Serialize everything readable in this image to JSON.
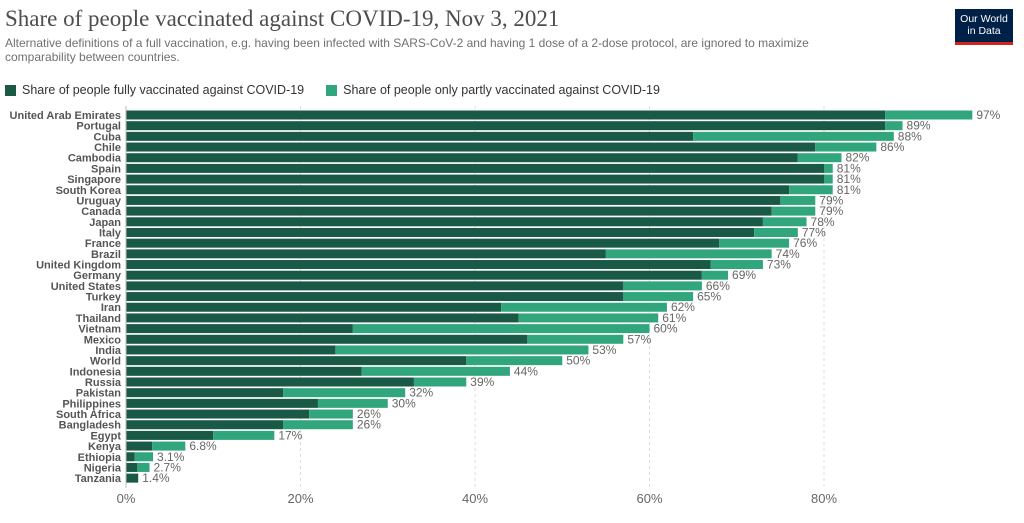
{
  "header": {
    "title": "Share of people vaccinated against COVID-19, Nov 3, 2021",
    "subtitle": "Alternative definitions of a full vaccination, e.g. having been infected with SARS-CoV-2 and having 1 dose of a 2-dose protocol, are ignored to maximize comparability between countries.",
    "logo_line1": "Our World",
    "logo_line2": "in Data"
  },
  "colors": {
    "full": "#1a5945",
    "partial": "#31a57c",
    "grid": "#dddddd",
    "logo_bg": "#002147",
    "logo_accent": "#ce261e"
  },
  "chart_data": {
    "type": "bar",
    "orientation": "horizontal",
    "stacked": true,
    "title": "Share of people vaccinated against COVID-19, Nov 3, 2021",
    "categories": [
      "United Arab Emirates",
      "Portugal",
      "Cuba",
      "Chile",
      "Cambodia",
      "Spain",
      "Singapore",
      "South Korea",
      "Uruguay",
      "Canada",
      "Japan",
      "Italy",
      "France",
      "Brazil",
      "United Kingdom",
      "Germany",
      "United States",
      "Turkey",
      "Iran",
      "Thailand",
      "Vietnam",
      "Mexico",
      "India",
      "World",
      "Indonesia",
      "Russia",
      "Pakistan",
      "Philippines",
      "South Africa",
      "Bangladesh",
      "Egypt",
      "Kenya",
      "Ethiopia",
      "Nigeria",
      "Tanzania"
    ],
    "series": [
      {
        "name": "Share of people fully vaccinated against COVID-19",
        "values": [
          87,
          87,
          65,
          79,
          77,
          80,
          80,
          76,
          75,
          74,
          73,
          72,
          68,
          55,
          67,
          66,
          57,
          57,
          43,
          45,
          26,
          46,
          24,
          39,
          27,
          33,
          18,
          22,
          21,
          18,
          10,
          3,
          1,
          1.3,
          1.4
        ]
      },
      {
        "name": "Share of people only partly vaccinated against COVID-19",
        "values": [
          10,
          2,
          23,
          7,
          5,
          1,
          1,
          5,
          4,
          5,
          5,
          5,
          8,
          19,
          6,
          3,
          9,
          8,
          19,
          16,
          34,
          11,
          29,
          11,
          17,
          6,
          14,
          8,
          5,
          8,
          7,
          3.8,
          2.1,
          1.4,
          0
        ]
      }
    ],
    "totals": [
      97,
      89,
      88,
      86,
      82,
      81,
      81,
      81,
      79,
      79,
      78,
      77,
      76,
      74,
      73,
      69,
      66,
      65,
      62,
      61,
      60,
      57,
      53,
      50,
      44,
      39,
      32,
      30,
      26,
      26,
      17,
      6.8,
      3.1,
      2.7,
      1.4
    ],
    "total_labels": [
      "97%",
      "89%",
      "88%",
      "86%",
      "82%",
      "81%",
      "81%",
      "81%",
      "79%",
      "79%",
      "78%",
      "77%",
      "76%",
      "74%",
      "73%",
      "69%",
      "66%",
      "65%",
      "62%",
      "61%",
      "60%",
      "57%",
      "53%",
      "50%",
      "44%",
      "39%",
      "32%",
      "30%",
      "26%",
      "26%",
      "17%",
      "6.8%",
      "3.1%",
      "2.7%",
      "1.4%"
    ],
    "x_ticks": [
      0,
      20,
      40,
      60,
      80
    ],
    "x_tick_labels": [
      "0%",
      "20%",
      "40%",
      "60%",
      "80%"
    ],
    "xlim": [
      0,
      100
    ],
    "grid": "vertical dashed",
    "legend_position": "top-left"
  }
}
